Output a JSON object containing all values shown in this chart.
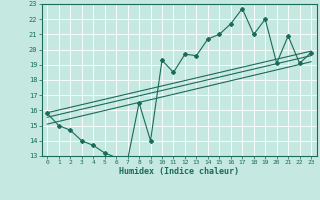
{
  "xlabel": "Humidex (Indice chaleur)",
  "background_color": "#c5e8e0",
  "grid_color": "#ffffff",
  "line_color": "#1a6b5a",
  "xlim": [
    -0.5,
    23.5
  ],
  "ylim": [
    13,
    23
  ],
  "xticks": [
    0,
    1,
    2,
    3,
    4,
    5,
    6,
    7,
    8,
    9,
    10,
    11,
    12,
    13,
    14,
    15,
    16,
    17,
    18,
    19,
    20,
    21,
    22,
    23
  ],
  "yticks": [
    13,
    14,
    15,
    16,
    17,
    18,
    19,
    20,
    21,
    22,
    23
  ],
  "series1_x": [
    0,
    1,
    2,
    3,
    4,
    5,
    6,
    7,
    8,
    9,
    10,
    11,
    12,
    13,
    14,
    15,
    16,
    17,
    18,
    19,
    20,
    21,
    22,
    23
  ],
  "series1_y": [
    15.8,
    15.0,
    14.7,
    14.0,
    13.7,
    13.2,
    12.9,
    12.75,
    16.5,
    14.0,
    19.3,
    18.5,
    19.7,
    19.6,
    20.7,
    21.0,
    21.7,
    22.7,
    21.0,
    22.0,
    19.1,
    20.9,
    19.1,
    19.8
  ],
  "trend1_x": [
    0,
    23
  ],
  "trend1_y": [
    15.1,
    19.2
  ],
  "trend2_x": [
    0,
    23
  ],
  "trend2_y": [
    15.55,
    19.6
  ],
  "trend3_x": [
    0,
    23
  ],
  "trend3_y": [
    15.85,
    19.9
  ]
}
